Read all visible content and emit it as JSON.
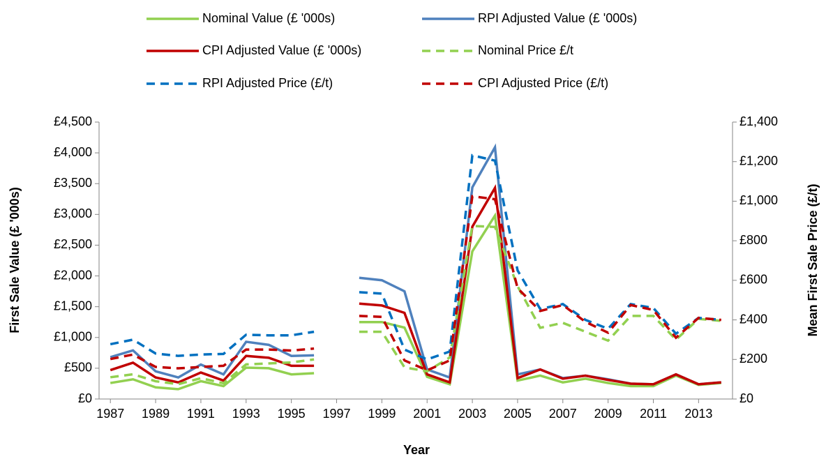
{
  "chart_data": {
    "type": "line",
    "x_label": "Year",
    "y_label": "First Sale Value (£ '000s)",
    "y2_label": "Mean First Sale Price (£/t)",
    "x": [
      1987,
      1988,
      1989,
      1990,
      1991,
      1992,
      1993,
      1994,
      1995,
      1996,
      1997,
      1998,
      1999,
      2000,
      2001,
      2002,
      2003,
      2004,
      2005,
      2006,
      2007,
      2008,
      2009,
      2010,
      2011,
      2012,
      2013,
      2014
    ],
    "xlim": [
      1986.5,
      2014.5
    ],
    "xticks": [
      1987,
      1989,
      1991,
      1993,
      1995,
      1997,
      1999,
      2001,
      2003,
      2005,
      2007,
      2009,
      2011,
      2013
    ],
    "ylim": [
      0,
      4500
    ],
    "yticks": [
      {
        "value": 0,
        "label": "£0"
      },
      {
        "value": 500,
        "label": "£500"
      },
      {
        "value": 1000,
        "label": "£1,000"
      },
      {
        "value": 1500,
        "label": "£1,500"
      },
      {
        "value": 2000,
        "label": "£2,000"
      },
      {
        "value": 2500,
        "label": "£2,500"
      },
      {
        "value": 3000,
        "label": "£3,000"
      },
      {
        "value": 3500,
        "label": "£3,500"
      },
      {
        "value": 4000,
        "label": "£4,000"
      },
      {
        "value": 4500,
        "label": "£4,500"
      }
    ],
    "y2lim": [
      0,
      1400
    ],
    "y2ticks": [
      {
        "value": 0,
        "label": "£0"
      },
      {
        "value": 200,
        "label": "£200"
      },
      {
        "value": 400,
        "label": "£400"
      },
      {
        "value": 600,
        "label": "£600"
      },
      {
        "value": 800,
        "label": "£800"
      },
      {
        "value": 1000,
        "label": "£1,000"
      },
      {
        "value": 1200,
        "label": "£1,200"
      },
      {
        "value": 1400,
        "label": "£1,400"
      }
    ],
    "grid": false,
    "legend": "top",
    "series": [
      {
        "name": "Nominal Value (£ '000s)",
        "color": "#92d050",
        "dash": false,
        "values": [
          260,
          320,
          190,
          160,
          290,
          210,
          510,
          500,
          400,
          420,
          null,
          1250,
          1250,
          1160,
          360,
          240,
          2400,
          2980,
          300,
          380,
          270,
          330,
          260,
          210,
          210,
          380,
          230,
          260
        ]
      },
      {
        "name": "RPI Adjusted Value (£ '000s)",
        "color": "#4f81bd",
        "dash": false,
        "values": [
          680,
          790,
          450,
          350,
          560,
          400,
          930,
          880,
          700,
          710,
          null,
          1970,
          1930,
          1750,
          480,
          350,
          3440,
          4090,
          400,
          480,
          340,
          380,
          320,
          250,
          240,
          400,
          240,
          270
        ]
      },
      {
        "name": "CPI Adjusted Value (£ '000s)",
        "color": "#c00000",
        "dash": false,
        "values": [
          470,
          590,
          350,
          270,
          430,
          300,
          700,
          670,
          540,
          540,
          null,
          1550,
          1520,
          1400,
          400,
          270,
          2800,
          3430,
          340,
          480,
          330,
          380,
          310,
          250,
          240,
          400,
          240,
          270
        ]
      },
      {
        "name": "Nominal Price £/t",
        "color": "#92d050",
        "dash": true,
        "axis": "y2",
        "values": [
          110,
          125,
          90,
          75,
          105,
          80,
          175,
          180,
          185,
          200,
          null,
          340,
          340,
          160,
          140,
          210,
          875,
          870,
          570,
          360,
          385,
          340,
          295,
          420,
          420,
          300,
          405,
          395
        ]
      },
      {
        "name": "RPI Adjusted Price (£/t)",
        "color": "#0070c0",
        "dash": true,
        "axis": "y2",
        "values": [
          277,
          300,
          230,
          218,
          225,
          228,
          325,
          322,
          322,
          340,
          null,
          540,
          533,
          250,
          200,
          240,
          1232,
          1205,
          650,
          455,
          480,
          400,
          355,
          480,
          460,
          330,
          410,
          400
        ]
      },
      {
        "name": "CPI Adjusted Price (£/t)",
        "color": "#c00000",
        "dash": true,
        "axis": "y2",
        "values": [
          202,
          225,
          162,
          155,
          162,
          168,
          250,
          250,
          245,
          255,
          null,
          420,
          415,
          195,
          145,
          195,
          1025,
          1010,
          560,
          445,
          475,
          390,
          335,
          475,
          450,
          310,
          410,
          400
        ]
      }
    ]
  }
}
